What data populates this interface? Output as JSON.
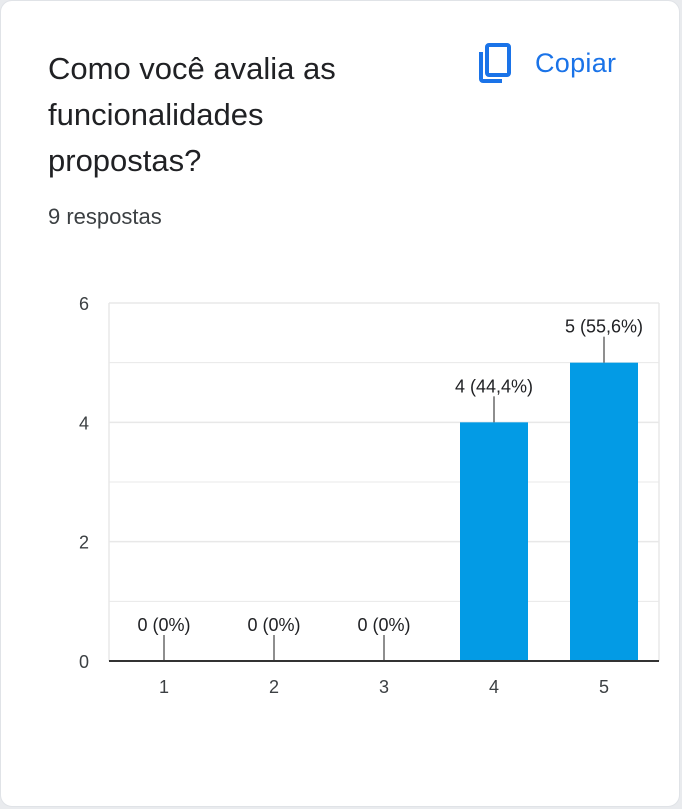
{
  "question": {
    "title": "Como você avalia as funcionalidades propostas?",
    "response_count": "9 respostas"
  },
  "copy_button": {
    "label": "Copiar",
    "icon": "copy-icon"
  },
  "colors": {
    "accent": "#1a73e8",
    "bar": "#039be5",
    "text": "#202124",
    "grid": "#e8e8e8"
  },
  "chart_data": {
    "type": "bar",
    "title": "Como você avalia as funcionalidades propostas?",
    "categories": [
      "1",
      "2",
      "3",
      "4",
      "5"
    ],
    "values": [
      0,
      0,
      0,
      4,
      5
    ],
    "data_labels": [
      "0 (0%)",
      "0 (0%)",
      "0 (0%)",
      "4 (44,4%)",
      "5 (55,6%)"
    ],
    "y_ticks": [
      0,
      2,
      4,
      6
    ],
    "ylim": [
      0,
      6
    ],
    "xlabel": "",
    "ylabel": "",
    "grid": true
  }
}
